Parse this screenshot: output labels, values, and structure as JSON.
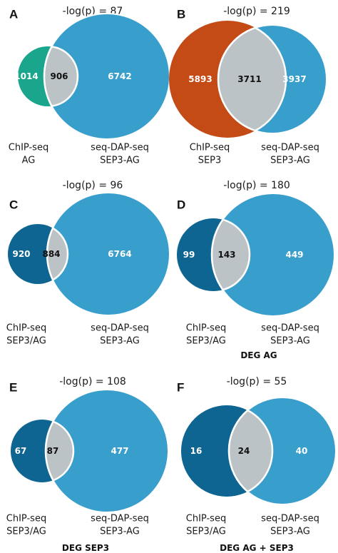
{
  "colors": {
    "teal": "#1aa68c",
    "orange": "#c44a16",
    "blue": "#389ecb",
    "dark_blue": "#0f6591",
    "overlap": "#bcc3c7"
  },
  "panels": [
    {
      "letter": "A",
      "pval": "-log(p) = 87",
      "left_count": "1014",
      "overlap_count": "906",
      "right_count": "6742",
      "left_label": [
        "ChIP-seq",
        "AG"
      ],
      "right_label": [
        "seq-DAP-seq",
        "SEP3-AG"
      ],
      "caption": "",
      "left_color": "teal"
    },
    {
      "letter": "B",
      "pval": "-log(p) = 219",
      "left_count": "5893",
      "overlap_count": "3711",
      "right_count": "3937",
      "left_label": [
        "ChIP-seq",
        "SEP3"
      ],
      "right_label": [
        "seq-DAP-seq",
        "SEP3-AG"
      ],
      "caption": "",
      "left_color": "orange"
    },
    {
      "letter": "C",
      "pval": "-log(p) = 96",
      "left_count": "920",
      "overlap_count": "884",
      "right_count": "6764",
      "left_label": [
        "ChIP-seq",
        "SEP3/AG"
      ],
      "right_label": [
        "seq-DAP-seq",
        "SEP3-AG"
      ],
      "caption": "",
      "left_color": "dark_blue"
    },
    {
      "letter": "D",
      "pval": "-log(p) = 180",
      "left_count": "99",
      "overlap_count": "143",
      "right_count": "449",
      "left_label": [
        "ChIP-seq",
        "SEP3/AG"
      ],
      "right_label": [
        "seq-DAP-seq",
        "SEP3-AG"
      ],
      "caption": "DEG AG",
      "left_color": "dark_blue"
    },
    {
      "letter": "E",
      "pval": "-log(p) = 108",
      "left_count": "67",
      "overlap_count": "87",
      "right_count": "477",
      "left_label": [
        "ChIP-seq",
        "SEP3/AG"
      ],
      "right_label": [
        "seq-DAP-seq",
        "SEP3-AG"
      ],
      "caption": "DEG SEP3",
      "left_color": "dark_blue"
    },
    {
      "letter": "F",
      "pval": "-log(p) = 55",
      "left_count": "16",
      "overlap_count": "24",
      "right_count": "40",
      "left_label": [
        "ChIP-seq",
        "SEP3/AG"
      ],
      "right_label": [
        "seq-DAP-seq",
        "SEP3-AG"
      ],
      "caption": "DEG AG + SEP3",
      "left_color": "dark_blue"
    }
  ]
}
